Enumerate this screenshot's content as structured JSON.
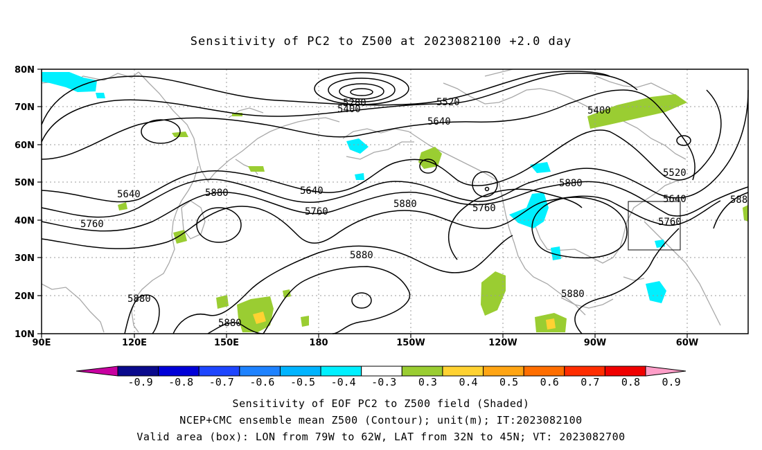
{
  "title": "Sensitivity of PC2 to Z500 at 2023082100 +2.0 day",
  "lat_ticks": [
    "80N",
    "70N",
    "60N",
    "50N",
    "40N",
    "30N",
    "20N",
    "10N"
  ],
  "lon_ticks": [
    "90E",
    "120E",
    "150E",
    "180",
    "150W",
    "120W",
    "90W",
    "60W"
  ],
  "contour_labels": {
    "c5280": "5280",
    "c5400a": "5400",
    "c5520a": "5520",
    "c5640a": "5640",
    "c5400b": "5400",
    "c5520b": "5520",
    "c5640b": "5640",
    "c5640c": "5640",
    "c5640d": "5640",
    "c5880a": "5880",
    "c5760a": "5760",
    "c5760b": "5760",
    "c5880b": "5880",
    "c5760c": "5760",
    "c5880c": "5880",
    "c5760d": "5760",
    "c5880d": "5880",
    "c5880e": "5880",
    "c5880f": "5880",
    "c5880g": "5880",
    "c588edge": "588"
  },
  "colorbar": {
    "labels": [
      "-0.9",
      "-0.8",
      "-0.7",
      "-0.6",
      "-0.5",
      "-0.4",
      "-0.3",
      "0.3",
      "0.4",
      "0.5",
      "0.6",
      "0.7",
      "0.8",
      "0.9"
    ],
    "colors": [
      "#0a0a8c",
      "#0000d8",
      "#1e46ff",
      "#1e82ff",
      "#00b4ff",
      "#00f0ff",
      "#ffffff",
      "#9acd32",
      "#ffd232",
      "#ffa514",
      "#ff6e00",
      "#ff2d00",
      "#f00000"
    ],
    "low_extend": "#c800a0",
    "high_extend": "#ff9ec8"
  },
  "footer": {
    "line1": "Sensitivity of EOF PC2 to Z500 field (Shaded)",
    "line2": "NCEP+CMC ensemble mean Z500 (Contour); unit(m); IT:2023082100",
    "line3": "Valid area (box): LON from 79W to 62W, LAT from 32N to 45N; VT: 2023082700"
  },
  "colors": {
    "coast": "#a8a8a8",
    "contour": "#000000",
    "positive_shade": "#9acd32",
    "negative_shade": "#00f0ff",
    "grid": "#9a9a9a"
  }
}
